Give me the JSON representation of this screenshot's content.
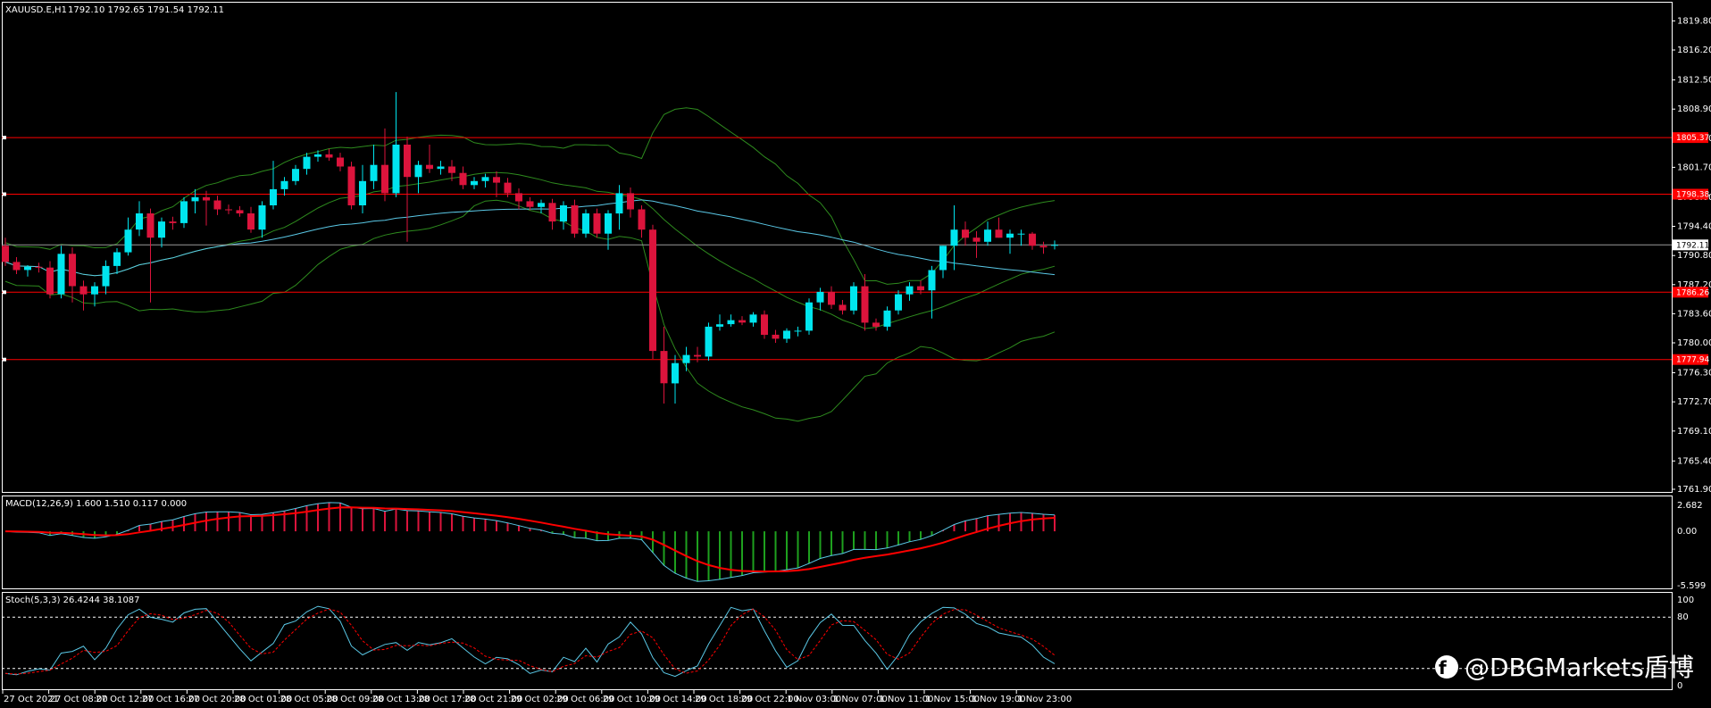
{
  "symbol_info": "XAUUSD.E,H1",
  "ohlc_info": "1792.10 1792.65 1791.54 1792.11",
  "current_price_label": "1792.11",
  "macd_info": "MACD(12,26,9) 1.600 1.510 0.117 0.000",
  "stoch_info": "Stoch(5,3,3) 26.4244 38.1087",
  "watermark": "@DBGMarkets盾博",
  "colors": {
    "background": "#000000",
    "bull": "#00e5ee",
    "bear": "#dc143c",
    "bands": "#2e8b1e",
    "ma": "#5ac8e6",
    "hline": "#ff0000",
    "grid": "#ffffff"
  },
  "price_axis": [
    "1819.80",
    "1816.20",
    "1812.50",
    "1808.90",
    "1805.30",
    "1801.70",
    "1798.00",
    "1794.40",
    "1790.80",
    "1787.20",
    "1783.60",
    "1780.00",
    "1776.30",
    "1772.70",
    "1769.10",
    "1765.40",
    "1761.90"
  ],
  "level_tags": [
    "1805.37",
    "1798.38",
    "1786.26",
    "1777.94"
  ],
  "macd_axis": [
    "2.682",
    "0.00",
    "-5.599"
  ],
  "stoch_axis": [
    "100",
    "80",
    "0"
  ],
  "time_axis": [
    "27 Oct 2021",
    "27 Oct 08:00",
    "27 Oct 12:00",
    "27 Oct 16:00",
    "27 Oct 20:00",
    "28 Oct 01:00",
    "28 Oct 05:00",
    "28 Oct 09:00",
    "28 Oct 13:00",
    "28 Oct 17:00",
    "28 Oct 21:00",
    "29 Oct 02:00",
    "29 Oct 06:00",
    "29 Oct 10:00",
    "29 Oct 14:00",
    "29 Oct 18:00",
    "29 Oct 22:00",
    "1 Nov 03:00",
    "1 Nov 07:00",
    "1 Nov 11:00",
    "1 Nov 15:00",
    "1 Nov 19:00",
    "1 Nov 23:00"
  ],
  "chart_data": {
    "type": "candlestick",
    "ylim": [
      1761.9,
      1821.5
    ],
    "horizontal_levels": [
      1805.37,
      1798.38,
      1786.26,
      1777.94
    ],
    "current_price": 1792.11,
    "candles": [
      [
        1792.0,
        1793.0,
        1789.5,
        1790.0
      ],
      [
        1790.0,
        1790.6,
        1788.5,
        1789.0
      ],
      [
        1789.0,
        1789.6,
        1788.2,
        1789.4
      ],
      [
        1789.4,
        1789.9,
        1788.7,
        1789.3
      ],
      [
        1789.3,
        1790.1,
        1785.5,
        1786.0
      ],
      [
        1786.0,
        1792.0,
        1785.5,
        1791.0
      ],
      [
        1791.0,
        1791.8,
        1785.0,
        1787.0
      ],
      [
        1787.0,
        1787.7,
        1784.0,
        1786.0
      ],
      [
        1786.0,
        1787.5,
        1784.5,
        1787.0
      ],
      [
        1787.0,
        1790.2,
        1786.0,
        1789.5
      ],
      [
        1789.5,
        1791.7,
        1788.5,
        1791.2
      ],
      [
        1791.2,
        1795.5,
        1790.8,
        1794.0
      ],
      [
        1794.0,
        1797.5,
        1793.2,
        1796.0
      ],
      [
        1796.0,
        1796.6,
        1785.0,
        1793.0
      ],
      [
        1793.0,
        1795.5,
        1791.8,
        1795.0
      ],
      [
        1795.0,
        1795.6,
        1794.0,
        1794.8
      ],
      [
        1794.8,
        1798.0,
        1794.2,
        1797.5
      ],
      [
        1797.5,
        1799.0,
        1796.0,
        1798.0
      ],
      [
        1798.0,
        1798.8,
        1794.5,
        1797.6
      ],
      [
        1797.6,
        1798.2,
        1795.8,
        1796.5
      ],
      [
        1796.5,
        1797.1,
        1795.9,
        1796.4
      ],
      [
        1796.4,
        1796.9,
        1795.6,
        1796.0
      ],
      [
        1796.0,
        1796.8,
        1793.6,
        1794.0
      ],
      [
        1794.0,
        1797.5,
        1793.0,
        1797.0
      ],
      [
        1797.0,
        1802.5,
        1796.5,
        1799.0
      ],
      [
        1799.0,
        1800.5,
        1798.2,
        1800.0
      ],
      [
        1800.0,
        1802.0,
        1799.5,
        1801.5
      ],
      [
        1801.5,
        1803.5,
        1800.8,
        1803.0
      ],
      [
        1803.0,
        1803.8,
        1802.4,
        1803.3
      ],
      [
        1803.3,
        1804.0,
        1802.5,
        1802.9
      ],
      [
        1802.9,
        1803.5,
        1801.2,
        1801.8
      ],
      [
        1801.8,
        1802.4,
        1796.5,
        1797.0
      ],
      [
        1797.0,
        1802.0,
        1796.0,
        1800.0
      ],
      [
        1800.0,
        1804.5,
        1799.0,
        1802.0
      ],
      [
        1802.0,
        1806.5,
        1797.5,
        1798.5
      ],
      [
        1798.5,
        1811.0,
        1798.0,
        1804.5
      ],
      [
        1804.5,
        1805.5,
        1792.5,
        1800.5
      ],
      [
        1800.5,
        1802.5,
        1798.5,
        1802.0
      ],
      [
        1802.0,
        1804.5,
        1801.0,
        1801.5
      ],
      [
        1801.5,
        1802.5,
        1800.8,
        1801.8
      ],
      [
        1801.8,
        1802.6,
        1800.0,
        1801.0
      ],
      [
        1801.0,
        1801.8,
        1799.0,
        1799.5
      ],
      [
        1799.5,
        1800.5,
        1799.0,
        1800.0
      ],
      [
        1800.0,
        1800.9,
        1799.2,
        1800.5
      ],
      [
        1800.5,
        1801.2,
        1798.0,
        1799.8
      ],
      [
        1799.8,
        1800.4,
        1798.0,
        1798.5
      ],
      [
        1798.5,
        1799.1,
        1796.5,
        1797.5
      ],
      [
        1797.5,
        1798.0,
        1796.4,
        1796.8
      ],
      [
        1796.8,
        1797.7,
        1796.0,
        1797.3
      ],
      [
        1797.3,
        1797.8,
        1794.0,
        1795.0
      ],
      [
        1795.0,
        1797.5,
        1794.0,
        1797.0
      ],
      [
        1797.0,
        1797.7,
        1793.0,
        1793.5
      ],
      [
        1793.5,
        1796.5,
        1793.0,
        1796.0
      ],
      [
        1796.0,
        1796.6,
        1793.0,
        1793.5
      ],
      [
        1793.5,
        1796.4,
        1791.5,
        1796.0
      ],
      [
        1796.0,
        1799.5,
        1794.0,
        1798.5
      ],
      [
        1798.5,
        1799.2,
        1795.5,
        1796.5
      ],
      [
        1796.5,
        1797.0,
        1793.0,
        1794.0
      ],
      [
        1794.0,
        1794.6,
        1778.0,
        1779.0
      ],
      [
        1779.0,
        1782.0,
        1772.5,
        1775.0
      ],
      [
        1775.0,
        1778.5,
        1772.5,
        1777.5
      ],
      [
        1777.5,
        1779.5,
        1776.5,
        1778.5
      ],
      [
        1778.5,
        1779.5,
        1777.6,
        1778.3
      ],
      [
        1778.3,
        1782.5,
        1777.8,
        1782.0
      ],
      [
        1782.0,
        1783.5,
        1781.5,
        1782.3
      ],
      [
        1782.3,
        1783.5,
        1782.0,
        1782.8
      ],
      [
        1782.8,
        1783.3,
        1782.2,
        1782.5
      ],
      [
        1782.5,
        1783.8,
        1782.0,
        1783.5
      ],
      [
        1783.5,
        1784.0,
        1780.5,
        1781.0
      ],
      [
        1781.0,
        1781.6,
        1780.0,
        1780.5
      ],
      [
        1780.5,
        1781.8,
        1780.0,
        1781.5
      ],
      [
        1781.5,
        1782.0,
        1780.8,
        1781.5
      ],
      [
        1781.5,
        1785.5,
        1781.0,
        1785.0
      ],
      [
        1785.0,
        1786.8,
        1784.0,
        1786.3
      ],
      [
        1786.3,
        1787.0,
        1784.2,
        1784.7
      ],
      [
        1784.7,
        1785.3,
        1783.5,
        1784.0
      ],
      [
        1784.0,
        1787.5,
        1783.5,
        1787.0
      ],
      [
        1787.0,
        1788.5,
        1781.5,
        1782.5
      ],
      [
        1782.5,
        1783.0,
        1781.5,
        1782.0
      ],
      [
        1782.0,
        1784.5,
        1781.5,
        1784.0
      ],
      [
        1784.0,
        1786.5,
        1783.5,
        1786.0
      ],
      [
        1786.0,
        1787.5,
        1785.2,
        1787.0
      ],
      [
        1787.0,
        1787.7,
        1786.0,
        1786.5
      ],
      [
        1786.5,
        1789.5,
        1783.0,
        1789.0
      ],
      [
        1789.0,
        1792.0,
        1788.0,
        1792.0
      ],
      [
        1792.0,
        1797.0,
        1789.0,
        1794.0
      ],
      [
        1794.0,
        1795.0,
        1792.0,
        1793.0
      ],
      [
        1793.0,
        1793.8,
        1790.5,
        1792.5
      ],
      [
        1792.5,
        1795.0,
        1792.0,
        1794.0
      ],
      [
        1794.0,
        1795.5,
        1793.0,
        1793.0
      ],
      [
        1793.0,
        1794.0,
        1791.0,
        1793.5
      ],
      [
        1793.5,
        1794.0,
        1792.0,
        1793.5
      ],
      [
        1793.5,
        1793.7,
        1791.5,
        1792.0
      ],
      [
        1792.0,
        1792.5,
        1791.0,
        1791.8
      ],
      [
        1792.1,
        1792.65,
        1791.54,
        1792.11
      ]
    ]
  }
}
